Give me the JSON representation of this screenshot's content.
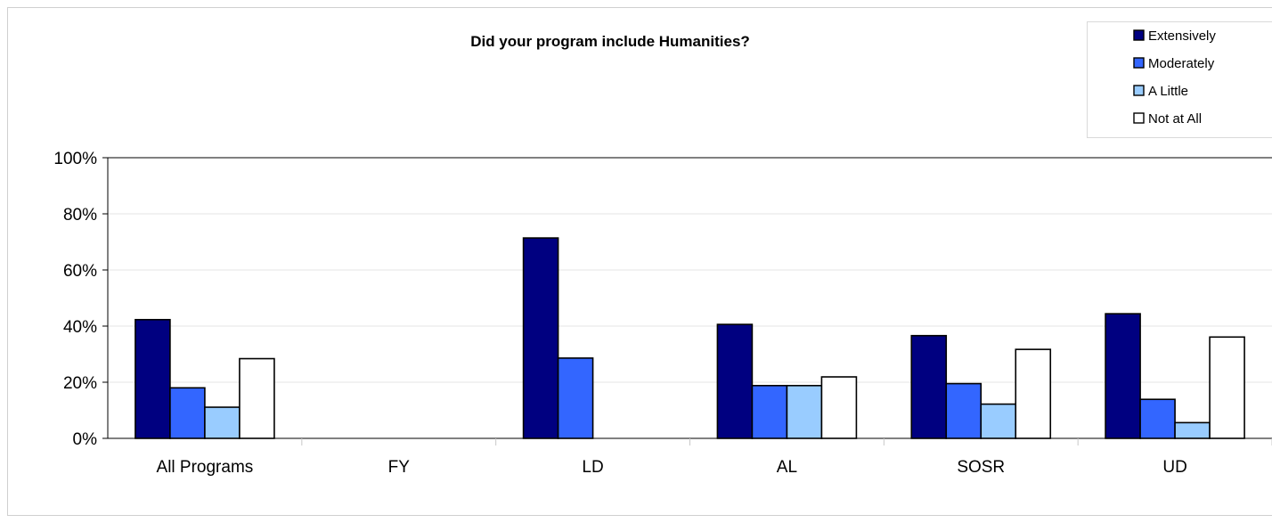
{
  "chart_data": {
    "type": "bar",
    "title": "Did your program include Humanities?",
    "xlabel": "",
    "ylabel": "",
    "categories": [
      "All Programs",
      "FY",
      "LD",
      "AL",
      "SOSR",
      "UD"
    ],
    "series": [
      {
        "name": "Extensively",
        "color": "#000080",
        "values": [
          42.3,
          0,
          71.4,
          40.6,
          36.6,
          44.4
        ]
      },
      {
        "name": "Moderately",
        "color": "#3366ff",
        "values": [
          18.0,
          0,
          28.6,
          18.8,
          19.5,
          13.9
        ]
      },
      {
        "name": "A Little",
        "color": "#99ccff",
        "values": [
          11.1,
          0,
          0,
          18.8,
          12.2,
          5.6
        ]
      },
      {
        "name": "Not at All",
        "color": "#ffffff",
        "values": [
          28.4,
          0,
          0,
          21.9,
          31.7,
          36.1
        ]
      }
    ],
    "ylim": [
      0,
      100
    ],
    "yticks": [
      0,
      20,
      40,
      60,
      80,
      100
    ],
    "ytick_labels": [
      "0%",
      "20%",
      "40%",
      "60%",
      "80%",
      "100%"
    ],
    "grid": true,
    "legend_position": "top-right"
  }
}
